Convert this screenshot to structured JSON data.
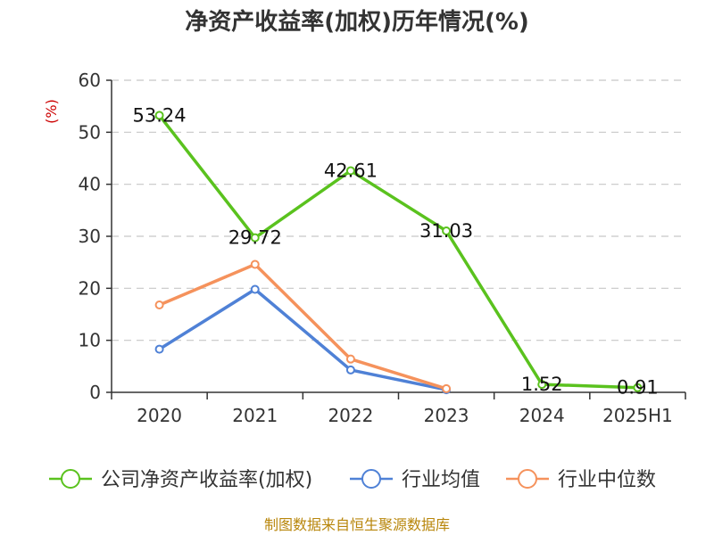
{
  "chart_data": {
    "type": "line",
    "title": "净资产收益率(加权)历年情况(%)",
    "ylabel": "(%)",
    "categories": [
      "2020",
      "2021",
      "2022",
      "2023",
      "2024",
      "2025H1"
    ],
    "ylim": [
      0,
      60
    ],
    "yticks": [
      "0",
      "10",
      "20",
      "30",
      "40",
      "50",
      "60"
    ],
    "grid": true,
    "legend_position": "bottom",
    "series": [
      {
        "name": "公司净资产收益率(加权)",
        "color": "#5ac21e",
        "values": [
          53.24,
          29.72,
          42.61,
          31.03,
          1.52,
          0.91
        ],
        "labels": [
          "53.24",
          "29.72",
          "42.61",
          "31.03",
          "1.52",
          "0.91"
        ]
      },
      {
        "name": "行业均值",
        "color": "#4f81d6",
        "values": [
          8.3,
          19.8,
          4.3,
          0.5,
          null,
          null
        ]
      },
      {
        "name": "行业中位数",
        "color": "#f5925c",
        "values": [
          16.8,
          24.6,
          6.4,
          0.7,
          null,
          null
        ]
      }
    ]
  },
  "footer": {
    "source": "制图数据来自恒生聚源数据库"
  }
}
